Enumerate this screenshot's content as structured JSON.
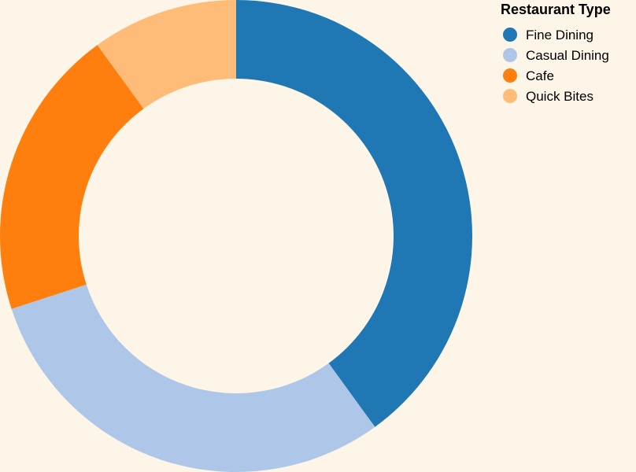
{
  "chart_data": {
    "type": "pie",
    "variant": "donut",
    "title": "",
    "legend_title": "Restaurant Type",
    "legend_position": "top-right",
    "categories": [
      "Fine Dining",
      "Casual Dining",
      "Cafe",
      "Quick Bites"
    ],
    "values": [
      40,
      30,
      20,
      10
    ],
    "colors": [
      "#1f77b4",
      "#aec7e8",
      "#ff7f0e",
      "#ffbb78"
    ]
  },
  "background_color": "#fdf5e8"
}
